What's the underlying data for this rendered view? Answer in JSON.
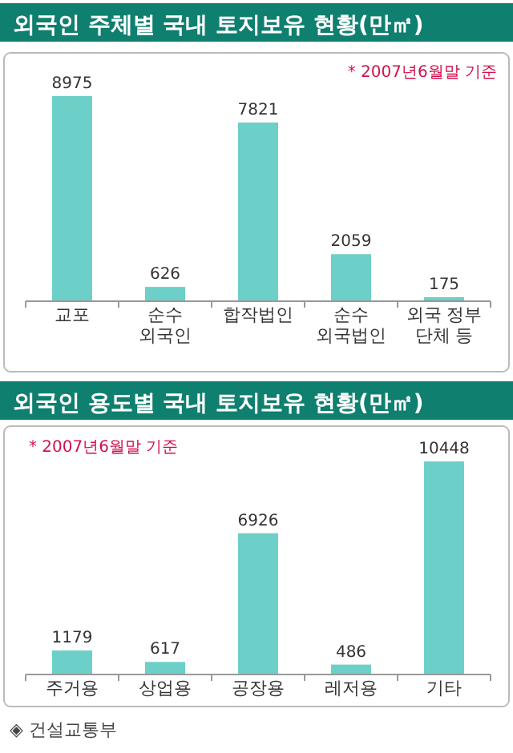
{
  "chart_data": [
    {
      "type": "bar",
      "title": "외국인 주체별 국내 토지보유 현황(만㎡)",
      "categories": [
        "교포",
        "순수\n외국인",
        "합작법인",
        "순수\n외국법인",
        "외국 정부\n단체 등"
      ],
      "values": [
        8975,
        626,
        7821,
        2059,
        175
      ],
      "color": "#6dd0c8",
      "data_labels": true,
      "annotations": [
        "* 2007년6월말 기준"
      ]
    },
    {
      "type": "bar",
      "title": "외국인 용도별 국내 토지보유 현황(만㎡)",
      "categories": [
        "주거용",
        "상업용",
        "공장용",
        "레저용",
        "기타"
      ],
      "values": [
        1179,
        617,
        6926,
        486,
        10448
      ],
      "color": "#6dd0c8",
      "data_labels": true,
      "annotations": [
        "* 2007년6월말 기준",
        "◈ 건설교통부"
      ]
    }
  ]
}
